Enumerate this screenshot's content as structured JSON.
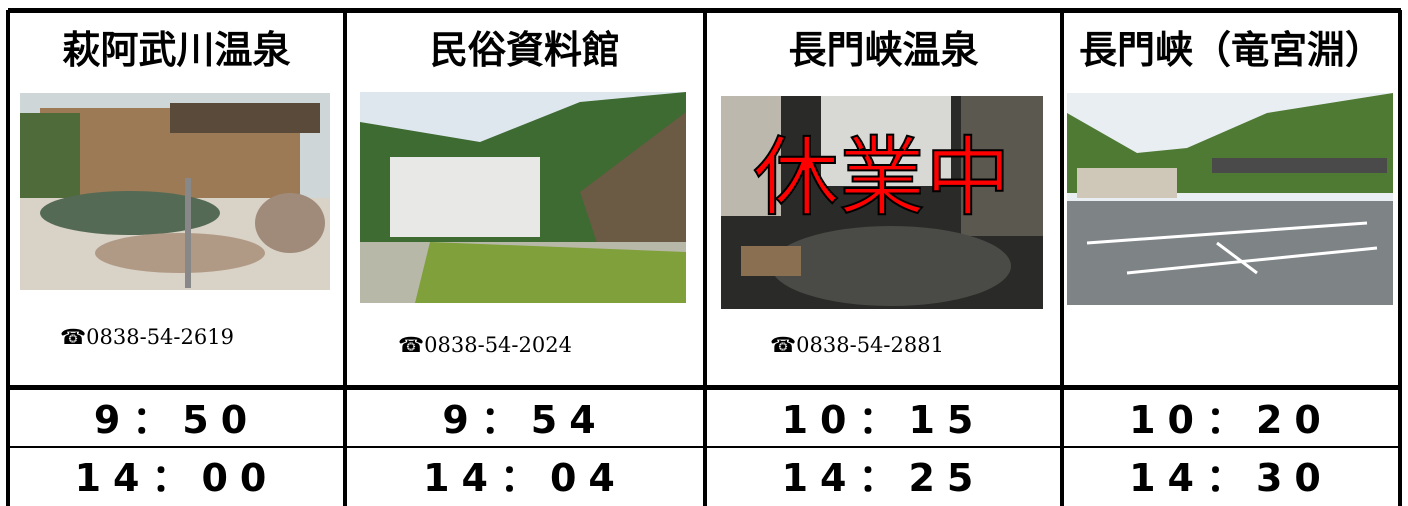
{
  "columns": [
    {
      "name": "萩阿武川温泉",
      "phone": "☎0838-54-2619",
      "times": [
        "9：50",
        "14：00"
      ]
    },
    {
      "name": "民俗資料館",
      "phone": "☎0838-54-2024",
      "times": [
        "9：54",
        "14：04"
      ]
    },
    {
      "name": "長門峡温泉",
      "phone": "☎0838-54-2881",
      "overlay": "休業中",
      "times": [
        "10：15",
        "14：25"
      ]
    },
    {
      "name": "長門峡（竜宮淵）",
      "times": [
        "10：20",
        "14：30"
      ]
    }
  ]
}
